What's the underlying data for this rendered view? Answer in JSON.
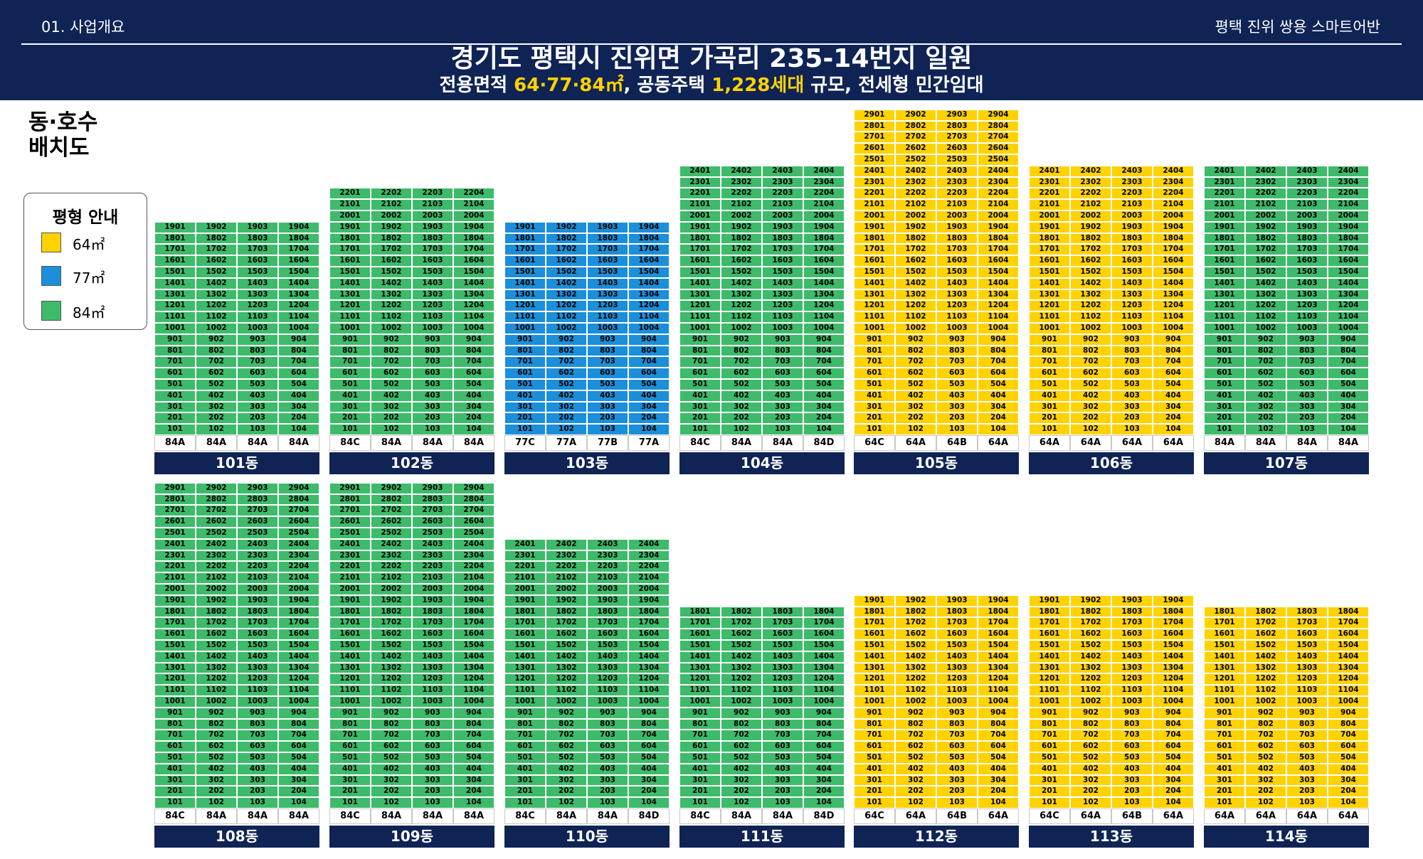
{
  "header": {
    "section": "01. 사업개요",
    "brand": "평택 진위 쌍용 스마트어반",
    "title_line1": "경기도 평택시 진위면 가곡리 235-14번지 일원",
    "title_line2": {
      "part1": "전용면적 ",
      "area_values": "64·77·84㎡",
      "part2": ", 공동주택 ",
      "households": "1,228세대",
      "part3": " 규모, 전세형 민간임대"
    }
  },
  "layout_title": "동·호수\n배치도",
  "legend": {
    "title": "평형 안내",
    "items": [
      {
        "label": "64㎡",
        "color": "#ffd200"
      },
      {
        "label": "77㎡",
        "color": "#1b8fd9"
      },
      {
        "label": "84㎡",
        "color": "#3dbb6a"
      }
    ]
  },
  "buildings": [
    {
      "name": "101동",
      "floors": 19,
      "units": [
        "84A",
        "84A",
        "84A",
        "84A"
      ],
      "colors": [
        "84",
        "84",
        "84",
        "84"
      ]
    },
    {
      "name": "102동",
      "floors": 22,
      "units": [
        "84C",
        "84A",
        "84A",
        "84A"
      ],
      "colors": [
        "84",
        "84",
        "84",
        "84"
      ]
    },
    {
      "name": "103동",
      "floors": 19,
      "units": [
        "77C",
        "77A",
        "77B",
        "77A"
      ],
      "colors": [
        "77",
        "77",
        "77",
        "77"
      ]
    },
    {
      "name": "104동",
      "floors": 24,
      "units": [
        "84C",
        "84A",
        "84A",
        "84D"
      ],
      "colors": [
        "84",
        "84",
        "84",
        "84"
      ]
    },
    {
      "name": "105동",
      "floors": 29,
      "units": [
        "64C",
        "64A",
        "64B",
        "64A"
      ],
      "colors": [
        "64",
        "64",
        "64",
        "64"
      ]
    },
    {
      "name": "106동",
      "floors": 24,
      "units": [
        "64A",
        "64A",
        "64A",
        "64A"
      ],
      "colors": [
        "64",
        "64",
        "64",
        "64"
      ]
    },
    {
      "name": "107동",
      "floors": 24,
      "units": [
        "84A",
        "84A",
        "84A",
        "84A"
      ],
      "colors": [
        "84",
        "84",
        "84",
        "84"
      ]
    },
    {
      "name": "108동",
      "floors": 29,
      "units": [
        "84C",
        "84A",
        "84A",
        "84A"
      ],
      "colors": [
        "84",
        "84",
        "84",
        "84"
      ]
    },
    {
      "name": "109동",
      "floors": 29,
      "units": [
        "84C",
        "84A",
        "84A",
        "84A"
      ],
      "colors": [
        "84",
        "84",
        "84",
        "84"
      ]
    },
    {
      "name": "110동",
      "floors": 24,
      "units": [
        "84C",
        "84A",
        "84A",
        "84D"
      ],
      "colors": [
        "84",
        "84",
        "84",
        "84"
      ]
    },
    {
      "name": "111동",
      "floors": 18,
      "units": [
        "84C",
        "84A",
        "84A",
        "84D"
      ],
      "colors": [
        "84",
        "84",
        "84",
        "84"
      ]
    },
    {
      "name": "112동",
      "floors": 19,
      "units": [
        "64C",
        "64A",
        "64B",
        "64A"
      ],
      "colors": [
        "64",
        "64",
        "64",
        "64"
      ]
    },
    {
      "name": "113동",
      "floors": 19,
      "units": [
        "64C",
        "64A",
        "64B",
        "64A"
      ],
      "colors": [
        "64",
        "64",
        "64",
        "64"
      ]
    },
    {
      "name": "114동",
      "floors": 18,
      "units": [
        "64A",
        "64A",
        "64A",
        "64A"
      ],
      "colors": [
        "64",
        "64",
        "64",
        "64"
      ]
    }
  ]
}
